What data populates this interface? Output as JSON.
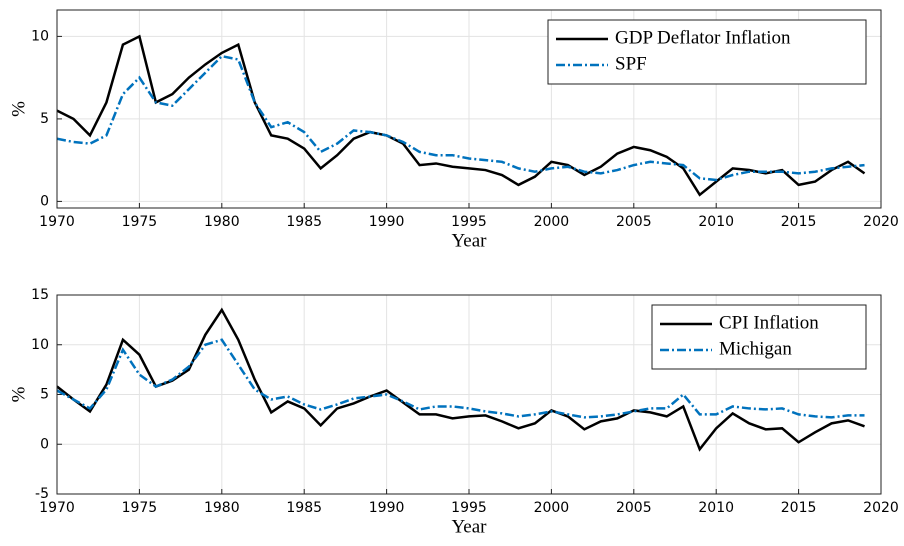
{
  "chart_data": [
    {
      "type": "line",
      "xlabel": "Year",
      "ylabel": "%",
      "x": [
        1970,
        1971,
        1972,
        1973,
        1974,
        1975,
        1976,
        1977,
        1978,
        1979,
        1980,
        1981,
        1982,
        1983,
        1984,
        1985,
        1986,
        1987,
        1988,
        1989,
        1990,
        1991,
        1992,
        1993,
        1994,
        1995,
        1996,
        1997,
        1998,
        1999,
        2000,
        2001,
        2002,
        2003,
        2004,
        2005,
        2006,
        2007,
        2008,
        2009,
        2010,
        2011,
        2012,
        2013,
        2014,
        2015,
        2016,
        2017,
        2018,
        2019
      ],
      "series": [
        {
          "name": "GDP Deflator Inflation",
          "color": "#000000",
          "dash": "solid",
          "values": [
            5.5,
            5.0,
            4.0,
            6.0,
            9.5,
            10.0,
            6.0,
            6.5,
            7.5,
            8.3,
            9.0,
            9.5,
            6.0,
            4.0,
            3.8,
            3.2,
            2.0,
            2.8,
            3.8,
            4.2,
            4.0,
            3.5,
            2.2,
            2.3,
            2.1,
            2.0,
            1.9,
            1.6,
            1.0,
            1.5,
            2.4,
            2.2,
            1.6,
            2.1,
            2.9,
            3.3,
            3.1,
            2.7,
            2.0,
            0.4,
            1.2,
            2.0,
            1.9,
            1.7,
            1.9,
            1.0,
            1.2,
            1.9,
            2.4,
            1.7
          ]
        },
        {
          "name": "SPF",
          "color": "#0072bd",
          "dash": "dashdot",
          "values": [
            3.8,
            3.6,
            3.5,
            4.0,
            6.5,
            7.5,
            6.0,
            5.8,
            6.8,
            7.8,
            8.8,
            8.6,
            6.0,
            4.5,
            4.8,
            4.2,
            3.0,
            3.5,
            4.3,
            4.2,
            4.0,
            3.6,
            3.0,
            2.8,
            2.8,
            2.6,
            2.5,
            2.4,
            2.0,
            1.8,
            2.0,
            2.1,
            1.8,
            1.7,
            1.9,
            2.2,
            2.4,
            2.3,
            2.2,
            1.4,
            1.3,
            1.6,
            1.8,
            1.8,
            1.8,
            1.7,
            1.8,
            2.0,
            2.1,
            2.2
          ]
        }
      ],
      "xlim": [
        1970,
        2020
      ],
      "xticks": [
        1970,
        1975,
        1980,
        1985,
        1990,
        1995,
        2000,
        2005,
        2010,
        2015,
        2020
      ],
      "ylim": [
        -0.4,
        11.6
      ],
      "yticks": [
        0,
        5,
        10
      ],
      "grid": true,
      "legend": "upper right"
    },
    {
      "type": "line",
      "xlabel": "Year",
      "ylabel": "%",
      "x": [
        1970,
        1971,
        1972,
        1973,
        1974,
        1975,
        1976,
        1977,
        1978,
        1979,
        1980,
        1981,
        1982,
        1983,
        1984,
        1985,
        1986,
        1987,
        1988,
        1989,
        1990,
        1991,
        1992,
        1993,
        1994,
        1995,
        1996,
        1997,
        1998,
        1999,
        2000,
        2001,
        2002,
        2003,
        2004,
        2005,
        2006,
        2007,
        2008,
        2009,
        2010,
        2011,
        2012,
        2013,
        2014,
        2015,
        2016,
        2017,
        2018,
        2019
      ],
      "series": [
        {
          "name": "CPI Inflation",
          "color": "#000000",
          "dash": "solid",
          "values": [
            5.8,
            4.5,
            3.3,
            6.0,
            10.5,
            9.0,
            5.8,
            6.4,
            7.5,
            11.0,
            13.5,
            10.5,
            6.5,
            3.2,
            4.3,
            3.6,
            1.9,
            3.6,
            4.1,
            4.8,
            5.4,
            4.2,
            3.0,
            3.0,
            2.6,
            2.8,
            2.9,
            2.3,
            1.6,
            2.1,
            3.4,
            2.8,
            1.5,
            2.3,
            2.6,
            3.4,
            3.2,
            2.8,
            3.8,
            -0.5,
            1.6,
            3.1,
            2.1,
            1.5,
            1.6,
            0.2,
            1.2,
            2.1,
            2.4,
            1.8
          ]
        },
        {
          "name": "Michigan",
          "color": "#0072bd",
          "dash": "dashdot",
          "values": [
            5.4,
            4.5,
            3.6,
            5.5,
            9.5,
            7.0,
            5.8,
            6.5,
            7.8,
            10.0,
            10.5,
            8.0,
            5.5,
            4.5,
            4.8,
            4.0,
            3.5,
            4.0,
            4.6,
            4.8,
            5.0,
            4.3,
            3.5,
            3.8,
            3.8,
            3.6,
            3.3,
            3.1,
            2.8,
            3.0,
            3.3,
            3.0,
            2.7,
            2.8,
            3.0,
            3.3,
            3.6,
            3.6,
            5.0,
            3.0,
            3.0,
            3.8,
            3.6,
            3.5,
            3.6,
            3.0,
            2.8,
            2.7,
            2.9,
            2.9
          ]
        }
      ],
      "xlim": [
        1970,
        2020
      ],
      "xticks": [
        1970,
        1975,
        1980,
        1985,
        1990,
        1995,
        2000,
        2005,
        2010,
        2015,
        2020
      ],
      "ylim": [
        -5,
        15
      ],
      "yticks": [
        -5,
        0,
        5,
        10,
        15
      ],
      "grid": true,
      "legend": "upper right"
    }
  ]
}
